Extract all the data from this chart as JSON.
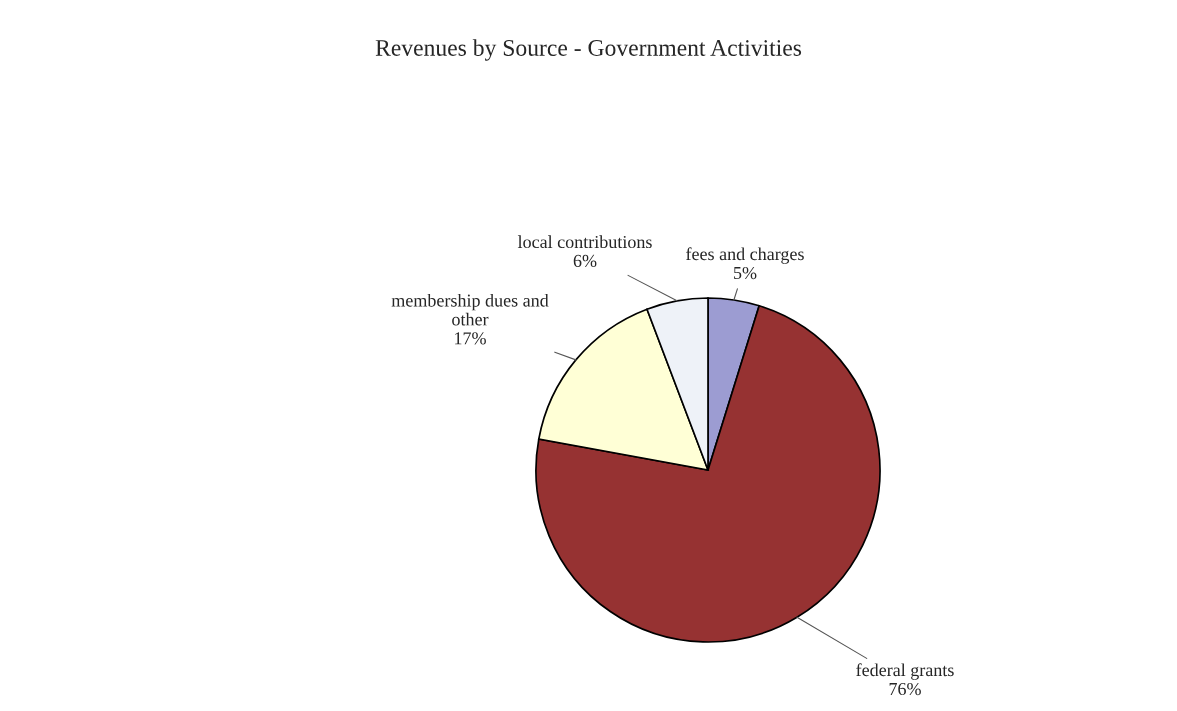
{
  "chart_data": {
    "type": "pie",
    "title": "Revenues by Source - Government Activities",
    "categories": [
      "fees and charges",
      "federal grants",
      "membership dues and other",
      "local contributions"
    ],
    "values": [
      5,
      76,
      17,
      6
    ],
    "value_labels": [
      "5%",
      "76%",
      "17%",
      "6%"
    ],
    "colors": [
      "#9c9cd2",
      "#963232",
      "#ffffd6",
      "#eef2f8"
    ]
  }
}
